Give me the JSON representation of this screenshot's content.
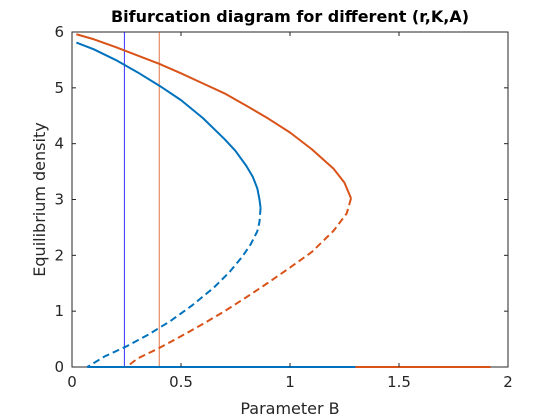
{
  "chart_data": {
    "type": "line",
    "title": "Bifurcation diagram for different (r,K,A)",
    "xlabel": "Parameter B",
    "ylabel": "Equilibrium density",
    "xlim": [
      0,
      2
    ],
    "ylim": [
      0,
      6
    ],
    "xticks": [
      "0",
      "0.5",
      "1",
      "1.5",
      "2"
    ],
    "yticks": [
      "0",
      "1",
      "2",
      "3",
      "4",
      "5",
      "6"
    ],
    "grid": false,
    "legend": "none",
    "colors": {
      "blue": "#0072BD",
      "orange": "#D95319"
    },
    "series": [
      {
        "color": "#0072BD",
        "style": "solid",
        "points": [
          [
            0.02,
            5.81
          ],
          [
            0.1,
            5.69
          ],
          [
            0.2,
            5.5
          ],
          [
            0.3,
            5.28
          ],
          [
            0.4,
            5.04
          ],
          [
            0.5,
            4.78
          ],
          [
            0.6,
            4.46
          ],
          [
            0.7,
            4.08
          ],
          [
            0.75,
            3.87
          ],
          [
            0.8,
            3.6
          ],
          [
            0.83,
            3.4
          ],
          [
            0.85,
            3.2
          ],
          [
            0.86,
            3.0
          ],
          [
            0.865,
            2.85
          ]
        ]
      },
      {
        "color": "#0072BD",
        "style": "dashed",
        "points": [
          [
            0.865,
            2.85
          ],
          [
            0.86,
            2.6
          ],
          [
            0.85,
            2.43
          ],
          [
            0.82,
            2.2
          ],
          [
            0.78,
            1.97
          ],
          [
            0.72,
            1.69
          ],
          [
            0.65,
            1.42
          ],
          [
            0.55,
            1.1
          ],
          [
            0.45,
            0.82
          ],
          [
            0.35,
            0.58
          ],
          [
            0.25,
            0.37
          ],
          [
            0.15,
            0.19
          ],
          [
            0.07,
            0.0
          ]
        ]
      },
      {
        "color": "#0072BD",
        "style": "solid",
        "points": [
          [
            0.07,
            0.0
          ],
          [
            1.3,
            0.0
          ]
        ]
      },
      {
        "color": "#D95319",
        "style": "solid",
        "points": [
          [
            0.02,
            5.96
          ],
          [
            0.1,
            5.87
          ],
          [
            0.2,
            5.73
          ],
          [
            0.3,
            5.58
          ],
          [
            0.4,
            5.43
          ],
          [
            0.5,
            5.26
          ],
          [
            0.6,
            5.08
          ],
          [
            0.7,
            4.9
          ],
          [
            0.8,
            4.68
          ],
          [
            0.9,
            4.45
          ],
          [
            1.0,
            4.2
          ],
          [
            1.1,
            3.9
          ],
          [
            1.2,
            3.55
          ],
          [
            1.25,
            3.3
          ],
          [
            1.28,
            3.02
          ]
        ]
      },
      {
        "color": "#D95319",
        "style": "dashed",
        "points": [
          [
            1.28,
            3.02
          ],
          [
            1.26,
            2.75
          ],
          [
            1.2,
            2.44
          ],
          [
            1.1,
            2.06
          ],
          [
            1.0,
            1.78
          ],
          [
            0.9,
            1.51
          ],
          [
            0.8,
            1.25
          ],
          [
            0.7,
            1.0
          ],
          [
            0.6,
            0.77
          ],
          [
            0.5,
            0.55
          ],
          [
            0.4,
            0.34
          ],
          [
            0.3,
            0.15
          ],
          [
            0.25,
            0.0
          ]
        ]
      },
      {
        "color": "#D95319",
        "style": "solid",
        "points": [
          [
            1.3,
            0.0
          ],
          [
            1.92,
            0.0
          ]
        ]
      }
    ],
    "vertical_lines": [
      {
        "x": 0.24,
        "color": "#0000FF"
      },
      {
        "x": 0.4,
        "color": "#D95319"
      }
    ]
  }
}
